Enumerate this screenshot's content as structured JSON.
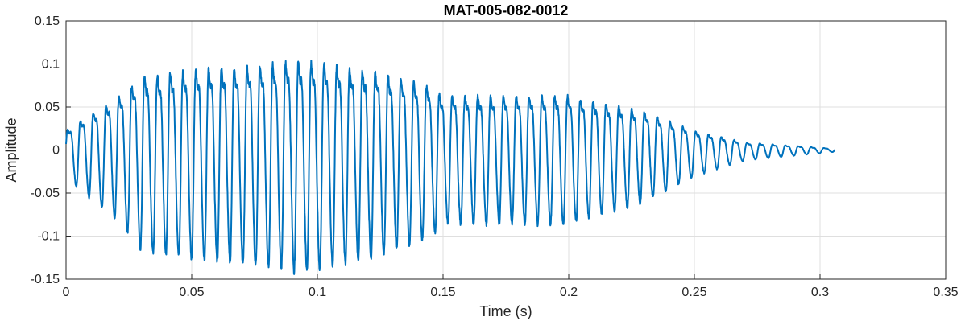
{
  "chart_data": {
    "type": "line",
    "title": "MAT-005-082-0012",
    "xlabel": "Time (s)",
    "ylabel": "Amplitude",
    "xlim": [
      0,
      0.35
    ],
    "ylim": [
      -0.15,
      0.15
    ],
    "xticks": [
      0,
      0.05,
      0.1,
      0.15,
      0.2,
      0.25,
      0.3,
      0.35
    ],
    "xtick_labels": [
      "0",
      "0.05",
      "0.1",
      "0.15",
      "0.2",
      "0.25",
      "0.3",
      "0.35"
    ],
    "yticks": [
      -0.15,
      -0.1,
      -0.05,
      0,
      0.05,
      0.1,
      0.15
    ],
    "ytick_labels": [
      "-0.15",
      "-0.1",
      "-0.05",
      "0",
      "0.05",
      "0.1",
      "0.15"
    ],
    "grid": true,
    "line_color": "#0072BD",
    "series": [
      {
        "duration": 0.306,
        "oscillation_cycles": 60,
        "envelope_time": [
          0,
          0.005,
          0.02,
          0.03,
          0.05,
          0.07,
          0.093,
          0.12,
          0.145,
          0.15,
          0.2,
          0.23,
          0.25,
          0.27,
          0.306
        ],
        "envelope_amplitude": [
          0.03,
          0.045,
          0.08,
          0.115,
          0.125,
          0.13,
          0.14,
          0.125,
          0.1,
          0.085,
          0.085,
          0.06,
          0.03,
          0.012,
          0.002
        ]
      }
    ]
  }
}
